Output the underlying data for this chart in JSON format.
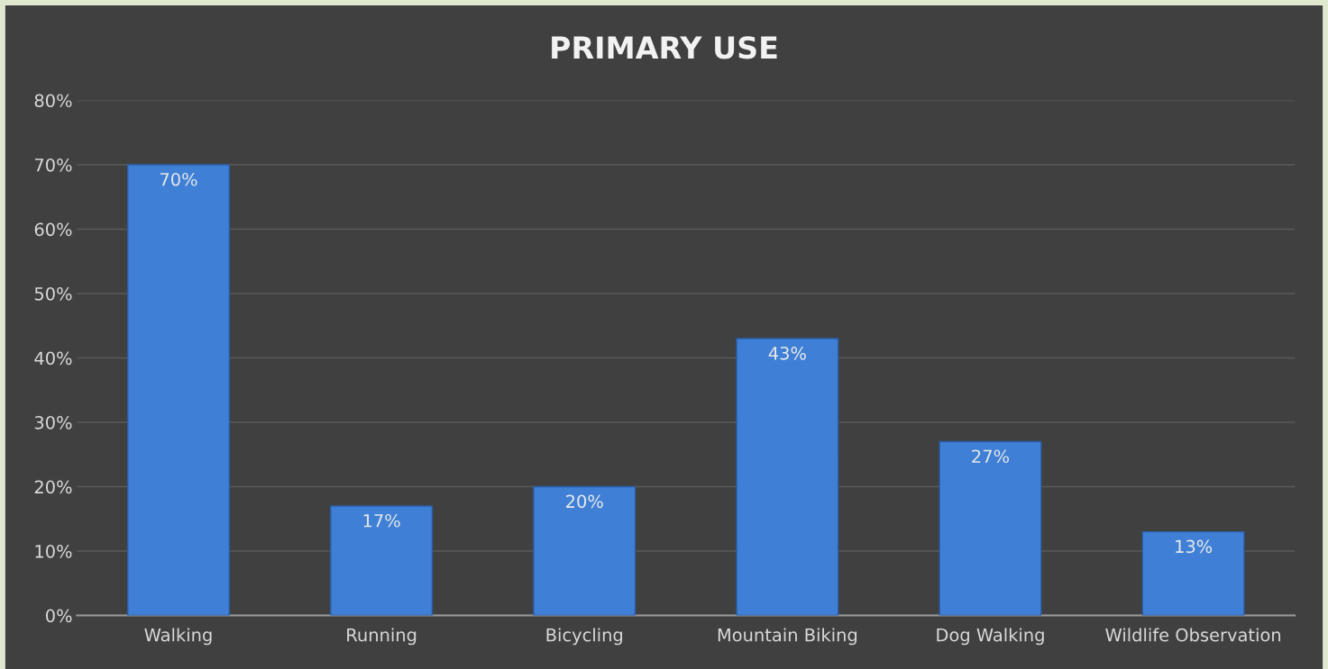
{
  "chart_data": {
    "type": "bar",
    "title": "PRIMARY USE",
    "categories": [
      "Walking",
      "Running",
      "Bicycling",
      "Mountain Biking",
      "Dog Walking",
      "Wildlife Observation"
    ],
    "values": [
      70,
      17,
      20,
      43,
      27,
      13
    ],
    "value_labels": [
      "70%",
      "17%",
      "20%",
      "43%",
      "27%",
      "13%"
    ],
    "color": "#3f80d6",
    "ylim": [
      0,
      80
    ],
    "yticks": [
      {
        "value": 0,
        "label": "0%"
      },
      {
        "value": 10,
        "label": "10%"
      },
      {
        "value": 20,
        "label": "20%"
      },
      {
        "value": 30,
        "label": "30%"
      },
      {
        "value": 40,
        "label": "40%"
      },
      {
        "value": 50,
        "label": "50%"
      },
      {
        "value": 60,
        "label": "60%"
      },
      {
        "value": 70,
        "label": "70%"
      },
      {
        "value": 80,
        "label": "80%"
      }
    ],
    "grid": "y"
  }
}
